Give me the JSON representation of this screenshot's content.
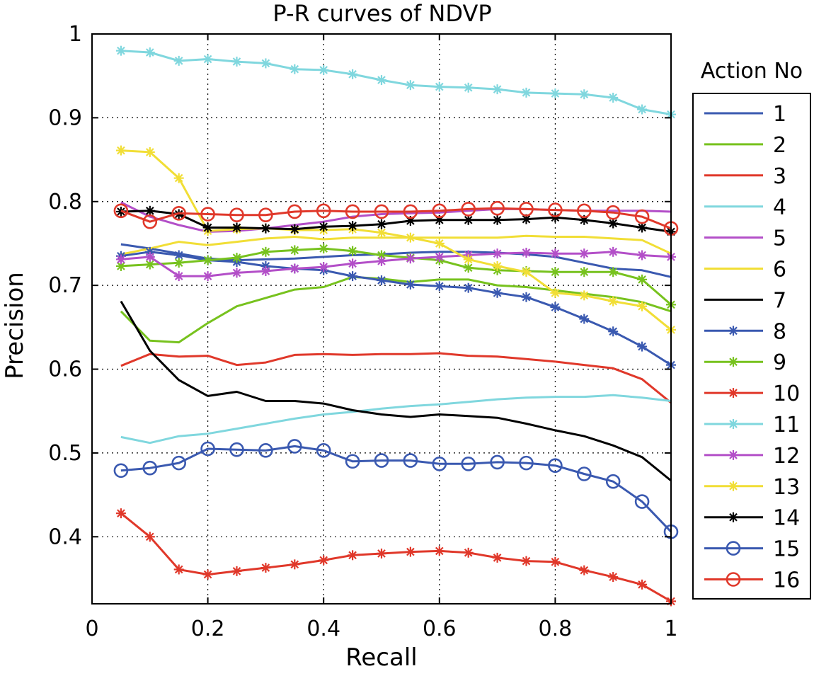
{
  "chart_data": {
    "type": "line",
    "title": "P-R curves of NDVP",
    "xlabel": "Recall",
    "ylabel": "Precision",
    "xlim": [
      0,
      1
    ],
    "ylim": [
      0.32,
      1.0
    ],
    "xticks": [
      0,
      0.2,
      0.4,
      0.6,
      0.8,
      1
    ],
    "xtick_labels": [
      "0",
      "0.2",
      "0.4",
      "0.6",
      "0.8",
      "1"
    ],
    "yticks": [
      0.4,
      0.5,
      0.6,
      0.7,
      0.8,
      0.9,
      1
    ],
    "ytick_labels": [
      "0.4",
      "0.5",
      "0.6",
      "0.7",
      "0.8",
      "0.9",
      "1"
    ],
    "grid": true,
    "legend_title": "Action No",
    "legend_position": "right-outside",
    "x": [
      0.05,
      0.1,
      0.15,
      0.2,
      0.25,
      0.3,
      0.35,
      0.4,
      0.45,
      0.5,
      0.55,
      0.6,
      0.65,
      0.7,
      0.75,
      0.8,
      0.85,
      0.9,
      0.95,
      1.0
    ],
    "series": [
      {
        "name": "1",
        "color": "#3a59b0",
        "marker": "none",
        "values": [
          0.749,
          0.744,
          0.738,
          0.732,
          0.73,
          0.731,
          0.732,
          0.734,
          0.736,
          0.737,
          0.739,
          0.74,
          0.74,
          0.739,
          0.737,
          0.734,
          0.727,
          0.72,
          0.718,
          0.71
        ]
      },
      {
        "name": "2",
        "color": "#77c21e",
        "marker": "none",
        "values": [
          0.669,
          0.634,
          0.632,
          0.655,
          0.675,
          0.685,
          0.695,
          0.698,
          0.71,
          0.708,
          0.704,
          0.707,
          0.707,
          0.7,
          0.698,
          0.694,
          0.69,
          0.686,
          0.68,
          0.669
        ]
      },
      {
        "name": "3",
        "color": "#e0382a",
        "marker": "none",
        "values": [
          0.604,
          0.618,
          0.615,
          0.616,
          0.605,
          0.608,
          0.617,
          0.618,
          0.617,
          0.618,
          0.618,
          0.619,
          0.616,
          0.615,
          0.612,
          0.609,
          0.605,
          0.601,
          0.588,
          0.56
        ]
      },
      {
        "name": "4",
        "color": "#80d7de",
        "marker": "none",
        "values": [
          0.519,
          0.512,
          0.52,
          0.523,
          0.529,
          0.535,
          0.541,
          0.546,
          0.549,
          0.553,
          0.556,
          0.558,
          0.561,
          0.564,
          0.566,
          0.567,
          0.567,
          0.569,
          0.566,
          0.562
        ]
      },
      {
        "name": "5",
        "color": "#b34fc8",
        "marker": "none",
        "values": [
          0.799,
          0.782,
          0.772,
          0.764,
          0.765,
          0.768,
          0.772,
          0.776,
          0.782,
          0.785,
          0.786,
          0.787,
          0.789,
          0.791,
          0.791,
          0.79,
          0.789,
          0.789,
          0.789,
          0.788
        ]
      },
      {
        "name": "6",
        "color": "#f1de36",
        "marker": "none",
        "values": [
          0.737,
          0.744,
          0.752,
          0.748,
          0.752,
          0.756,
          0.758,
          0.755,
          0.757,
          0.757,
          0.757,
          0.757,
          0.757,
          0.757,
          0.759,
          0.758,
          0.758,
          0.756,
          0.754,
          0.738
        ]
      },
      {
        "name": "7",
        "color": "#000000",
        "marker": "none",
        "values": [
          0.681,
          0.622,
          0.587,
          0.568,
          0.573,
          0.562,
          0.562,
          0.559,
          0.551,
          0.546,
          0.543,
          0.546,
          0.544,
          0.542,
          0.535,
          0.527,
          0.52,
          0.509,
          0.495,
          0.467
        ]
      },
      {
        "name": "8",
        "color": "#3a59b0",
        "marker": "star",
        "values": [
          0.735,
          0.74,
          0.736,
          0.73,
          0.728,
          0.723,
          0.72,
          0.718,
          0.711,
          0.706,
          0.701,
          0.699,
          0.697,
          0.691,
          0.686,
          0.674,
          0.66,
          0.645,
          0.627,
          0.605
        ]
      },
      {
        "name": "9",
        "color": "#77c21e",
        "marker": "star",
        "values": [
          0.723,
          0.725,
          0.727,
          0.73,
          0.733,
          0.74,
          0.742,
          0.744,
          0.741,
          0.736,
          0.733,
          0.73,
          0.721,
          0.718,
          0.717,
          0.716,
          0.716,
          0.716,
          0.707,
          0.677
        ]
      },
      {
        "name": "10",
        "color": "#e0382a",
        "marker": "star",
        "values": [
          0.428,
          0.4,
          0.361,
          0.355,
          0.359,
          0.363,
          0.367,
          0.372,
          0.378,
          0.38,
          0.382,
          0.383,
          0.381,
          0.375,
          0.371,
          0.37,
          0.36,
          0.352,
          0.343,
          0.323
        ]
      },
      {
        "name": "11",
        "color": "#80d7de",
        "marker": "star",
        "values": [
          0.98,
          0.978,
          0.968,
          0.97,
          0.967,
          0.965,
          0.958,
          0.957,
          0.952,
          0.945,
          0.939,
          0.937,
          0.936,
          0.934,
          0.93,
          0.929,
          0.928,
          0.924,
          0.91,
          0.904
        ]
      },
      {
        "name": "12",
        "color": "#b34fc8",
        "marker": "star",
        "values": [
          0.731,
          0.734,
          0.711,
          0.711,
          0.715,
          0.717,
          0.72,
          0.722,
          0.726,
          0.729,
          0.732,
          0.734,
          0.736,
          0.738,
          0.739,
          0.738,
          0.738,
          0.74,
          0.736,
          0.734
        ]
      },
      {
        "name": "13",
        "color": "#f1de36",
        "marker": "star",
        "values": [
          0.861,
          0.859,
          0.828,
          0.765,
          0.767,
          0.768,
          0.766,
          0.766,
          0.767,
          0.763,
          0.757,
          0.75,
          0.731,
          0.723,
          0.716,
          0.691,
          0.688,
          0.681,
          0.675,
          0.647
        ]
      },
      {
        "name": "14",
        "color": "#000000",
        "marker": "star",
        "values": [
          0.788,
          0.789,
          0.785,
          0.769,
          0.769,
          0.768,
          0.767,
          0.77,
          0.771,
          0.773,
          0.777,
          0.778,
          0.778,
          0.778,
          0.779,
          0.781,
          0.778,
          0.774,
          0.769,
          0.764
        ]
      },
      {
        "name": "15",
        "color": "#3a59b0",
        "marker": "circle",
        "values": [
          0.479,
          0.482,
          0.488,
          0.505,
          0.504,
          0.503,
          0.508,
          0.503,
          0.49,
          0.491,
          0.491,
          0.487,
          0.487,
          0.489,
          0.488,
          0.485,
          0.475,
          0.466,
          0.442,
          0.406
        ]
      },
      {
        "name": "16",
        "color": "#e0382a",
        "marker": "circle",
        "values": [
          0.789,
          0.776,
          0.786,
          0.785,
          0.784,
          0.784,
          0.788,
          0.789,
          0.788,
          0.788,
          0.788,
          0.789,
          0.791,
          0.792,
          0.791,
          0.79,
          0.789,
          0.787,
          0.782,
          0.768
        ]
      }
    ]
  }
}
